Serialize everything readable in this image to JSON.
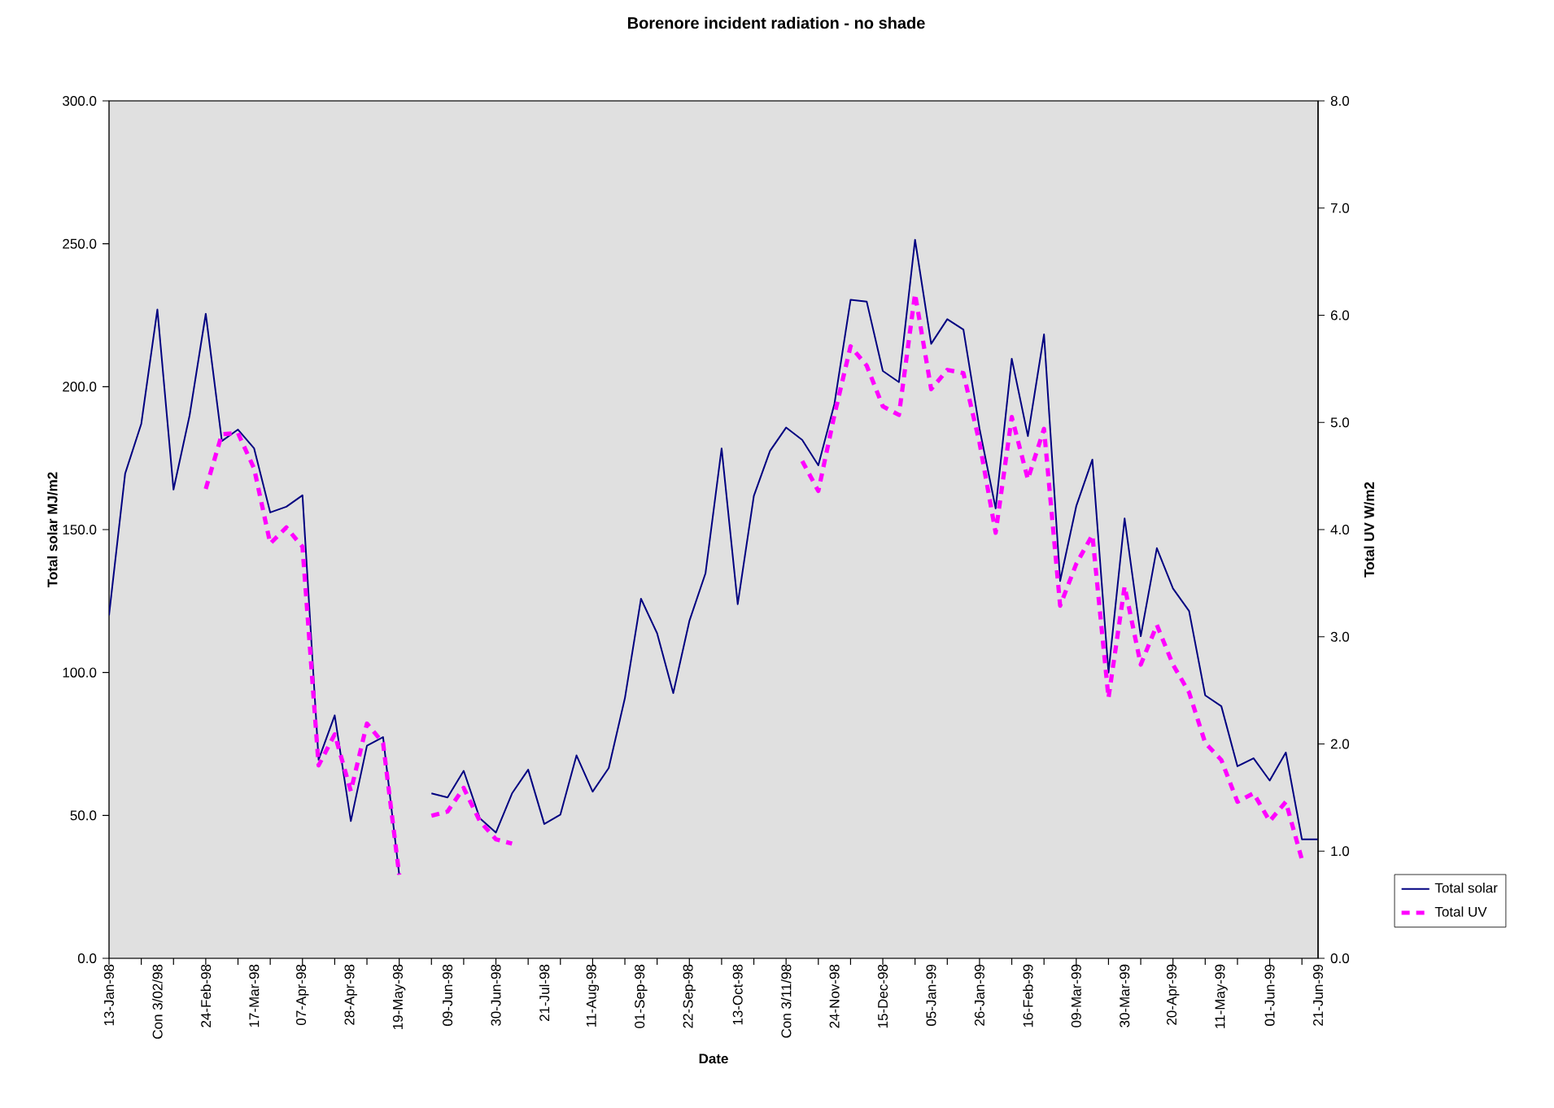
{
  "chart_data": {
    "type": "line",
    "title": "Borenore incident radiation - no shade",
    "xlabel": "Date",
    "ylabel": "Total solar MJ/m2",
    "y2label": "Total UV W/m2",
    "categories": [
      "13-Jan-98",
      null,
      null,
      "Con 3/02/98",
      null,
      null,
      "24-Feb-98",
      null,
      null,
      "17-Mar-98",
      null,
      null,
      "07-Apr-98",
      null,
      null,
      "28-Apr-98",
      null,
      null,
      "19-May-98",
      null,
      null,
      "09-Jun-98",
      null,
      null,
      "30-Jun-98",
      null,
      null,
      "21-Jul-98",
      null,
      null,
      "11-Aug-98",
      null,
      null,
      "01-Sep-98",
      null,
      null,
      "22-Sep-98",
      null,
      null,
      "13-Oct-98",
      null,
      null,
      "Con 3/11/98",
      null,
      null,
      "24-Nov-98",
      null,
      null,
      "15-Dec-98",
      null,
      null,
      "05-Jan-99",
      null,
      null,
      "26-Jan-99",
      null,
      null,
      "16-Feb-99",
      null,
      null,
      "09-Mar-99",
      null,
      null,
      "30-Mar-99",
      null,
      null,
      "20-Apr-99",
      null,
      null,
      "11-May-99",
      null,
      null,
      "01-Jun-99",
      null,
      null,
      "21-Jun-99"
    ],
    "series": [
      {
        "name": "Total solar",
        "color": "#000080",
        "line_style": "solid",
        "values": [
          120,
          169.6,
          187,
          227,
          164,
          190,
          225.5,
          181,
          185,
          178.4,
          156,
          158,
          162,
          69.5,
          85,
          48,
          74.4,
          77.4,
          29.3,
          null,
          57.7,
          56.3,
          65.6,
          49,
          44,
          57.7,
          66,
          47,
          50.3,
          71,
          58.3,
          66.6,
          91,
          125.8,
          113.7,
          92.8,
          118,
          134.7,
          178.4,
          123.9,
          161.8,
          177.5,
          185.7,
          181.4,
          172.5,
          194,
          230.4,
          229.8,
          205.5,
          201.6,
          251.4,
          215,
          223.6,
          220,
          185.3,
          157.4,
          209.8,
          182.7,
          218.3,
          132,
          158.2,
          174.5,
          100,
          153.9,
          112.7,
          143.5,
          129.4,
          121.5,
          92,
          88.2,
          67.2,
          70,
          62.2,
          72,
          41.6,
          41.6
        ]
      },
      {
        "name": "Total UV",
        "color": "#ff00ff",
        "line_style": "dashed",
        "axis": "y2",
        "values": [
          null,
          null,
          null,
          null,
          null,
          null,
          4.38,
          4.89,
          4.9,
          4.57,
          3.87,
          4.02,
          3.84,
          1.8,
          2.09,
          1.56,
          2.19,
          2.01,
          0.78,
          null,
          1.33,
          1.37,
          1.59,
          1.28,
          1.11,
          1.07,
          null,
          null,
          null,
          null,
          null,
          null,
          null,
          null,
          null,
          null,
          null,
          null,
          null,
          null,
          null,
          null,
          null,
          4.64,
          4.36,
          5.07,
          5.71,
          5.53,
          5.15,
          5.07,
          6.2,
          5.31,
          5.49,
          5.46,
          4.81,
          3.97,
          5.05,
          4.47,
          4.94,
          3.29,
          3.68,
          3.95,
          2.43,
          3.47,
          2.74,
          3.11,
          2.74,
          2.48,
          2.01,
          1.85,
          1.46,
          1.54,
          1.28,
          1.46,
          0.92,
          null
        ]
      }
    ],
    "ylim": [
      0,
      300
    ],
    "yticks": [
      {
        "value": 0,
        "label": "0.0"
      },
      {
        "value": 50,
        "label": "50.0"
      },
      {
        "value": 100,
        "label": "100.0"
      },
      {
        "value": 150,
        "label": "150.0"
      },
      {
        "value": 200,
        "label": "200.0"
      },
      {
        "value": 250,
        "label": "250.0"
      },
      {
        "value": 300,
        "label": "300.0"
      }
    ],
    "y2lim": [
      0,
      8
    ],
    "y2ticks": [
      {
        "value": 0,
        "label": "0.0"
      },
      {
        "value": 1,
        "label": "1.0"
      },
      {
        "value": 2,
        "label": "2.0"
      },
      {
        "value": 3,
        "label": "3.0"
      },
      {
        "value": 4,
        "label": "4.0"
      },
      {
        "value": 5,
        "label": "5.0"
      },
      {
        "value": 6,
        "label": "6.0"
      },
      {
        "value": 7,
        "label": "7.0"
      },
      {
        "value": 8,
        "label": "8.0"
      }
    ],
    "grid": false,
    "legend": "bottom right"
  }
}
